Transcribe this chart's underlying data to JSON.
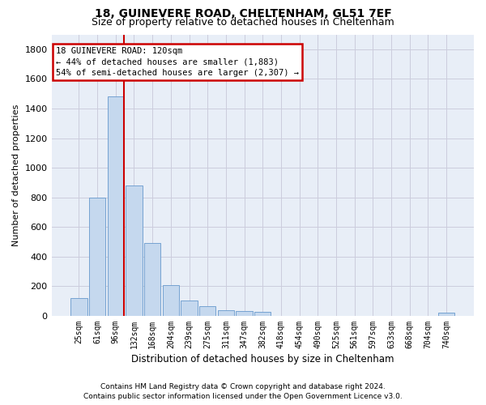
{
  "title1": "18, GUINEVERE ROAD, CHELTENHAM, GL51 7EF",
  "title2": "Size of property relative to detached houses in Cheltenham",
  "xlabel": "Distribution of detached houses by size in Cheltenham",
  "ylabel": "Number of detached properties",
  "footer1": "Contains HM Land Registry data © Crown copyright and database right 2024.",
  "footer2": "Contains public sector information licensed under the Open Government Licence v3.0.",
  "bar_color": "#c5d8ee",
  "bar_edge_color": "#6699cc",
  "grid_color": "#ccccdd",
  "annotation_box_edge_color": "#cc0000",
  "property_line_color": "#cc0000",
  "categories": [
    "25sqm",
    "61sqm",
    "96sqm",
    "132sqm",
    "168sqm",
    "204sqm",
    "239sqm",
    "275sqm",
    "311sqm",
    "347sqm",
    "382sqm",
    "418sqm",
    "454sqm",
    "490sqm",
    "525sqm",
    "561sqm",
    "597sqm",
    "633sqm",
    "668sqm",
    "704sqm",
    "740sqm"
  ],
  "values": [
    120,
    800,
    1480,
    880,
    490,
    205,
    105,
    65,
    40,
    35,
    25,
    0,
    0,
    0,
    0,
    0,
    0,
    0,
    0,
    0,
    20
  ],
  "property_label": "18 GUINEVERE ROAD: 120sqm",
  "pct_smaller": "44% of detached houses are smaller (1,883)",
  "pct_larger": "54% of semi-detached houses are larger (2,307)",
  "property_bar_index": 2,
  "ylim": [
    0,
    1900
  ],
  "yticks": [
    0,
    200,
    400,
    600,
    800,
    1000,
    1200,
    1400,
    1600,
    1800
  ],
  "background_color": "#ffffff",
  "plot_bg_color": "#e8eef7"
}
